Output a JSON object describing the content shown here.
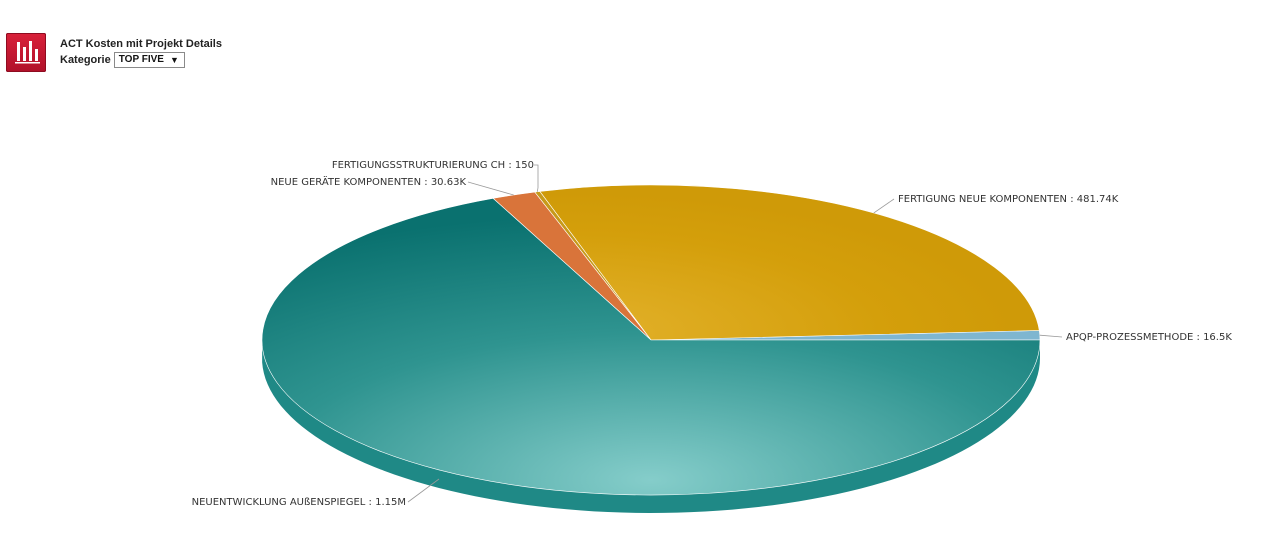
{
  "header": {
    "icon": "bar-chart-icon",
    "title": "ACT Kosten mit Projekt Details",
    "kategorie_label": "Kategorie",
    "kategorie_selected": "TOP FIVE",
    "accent": "#c8102e"
  },
  "chart_data": {
    "type": "pie",
    "title": "",
    "series": [
      {
        "slices": [
          {
            "label": "NEUENTWICKLUNG AUßENSPIEGEL",
            "value": 1150000,
            "display": "1.15M",
            "color": "#0f7b78"
          },
          {
            "label": "NEUE GERÄTE KOMPONENTEN",
            "value": 30630,
            "display": "30.63K",
            "color": "#d9743a"
          },
          {
            "label": "FERTIGUNGSSTRUKTURIERUNG CH",
            "value": 150,
            "display": "150",
            "color": "#c79a1a"
          },
          {
            "label": "FERTIGUNG NEUE KOMPONENTEN",
            "value": 481740,
            "display": "481.74K",
            "color": "#d6a10c"
          },
          {
            "label": "APQP-PROZESSMETHODE",
            "value": 16500,
            "display": "16.5K",
            "color": "#7fb6d0"
          }
        ]
      }
    ],
    "style": "3d"
  }
}
